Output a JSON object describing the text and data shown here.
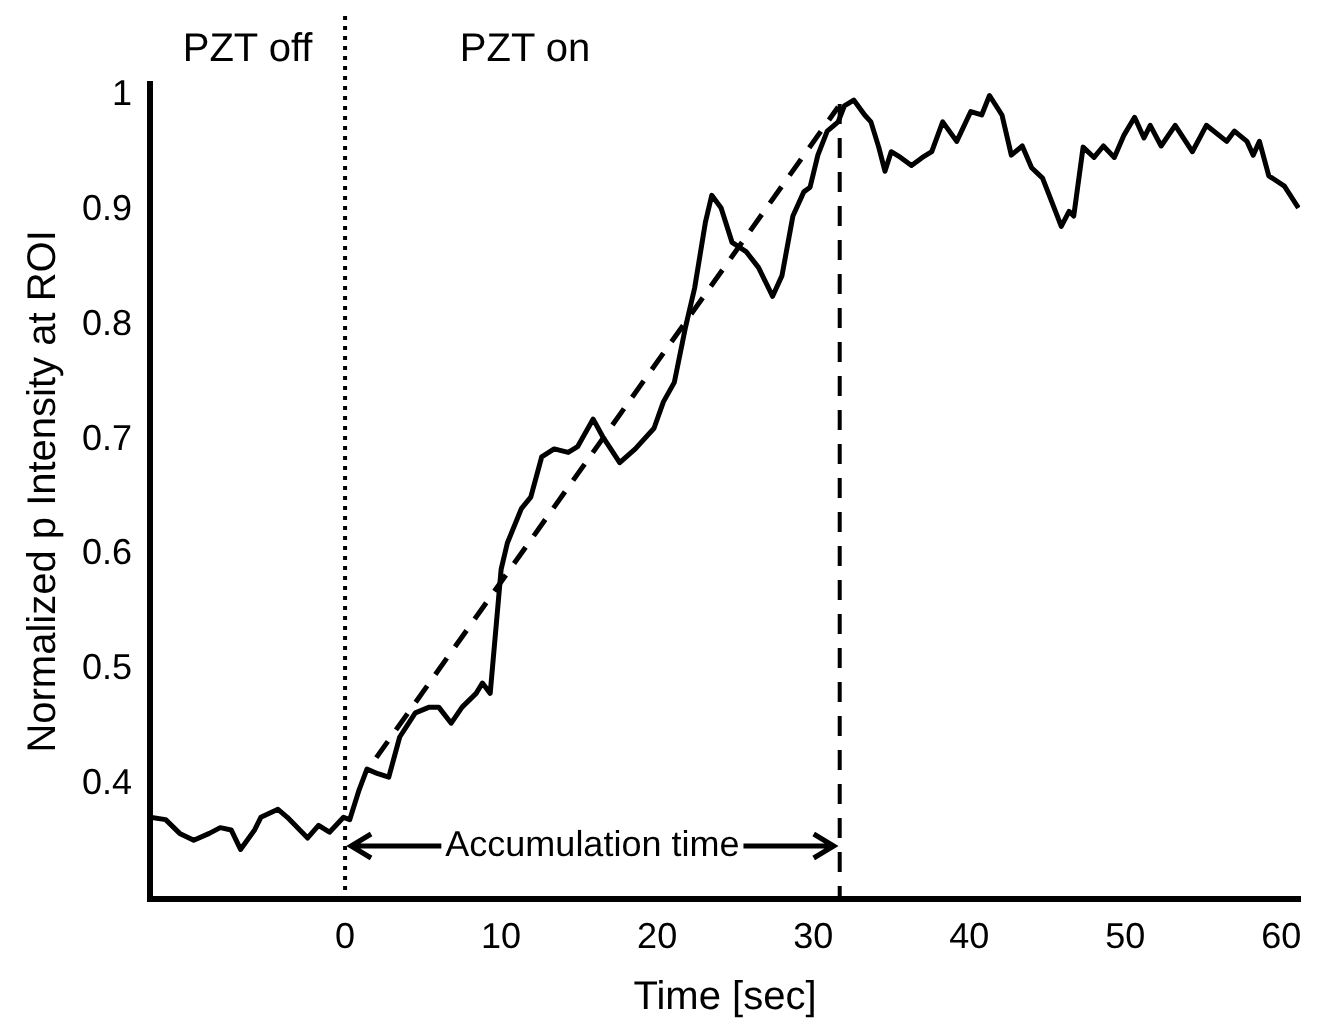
{
  "chart_data": {
    "type": "line",
    "xlabel": "Time [sec]",
    "ylabel": "Normalized p Intensity at ROI",
    "xlim": [
      -12.5,
      61.2
    ],
    "ylim": [
      0.3,
      1.01
    ],
    "xticks": [
      0,
      10,
      20,
      30,
      40,
      50,
      60
    ],
    "yticks": [
      0.4,
      0.5,
      0.6,
      0.7,
      0.8,
      0.9,
      1
    ],
    "series": [
      {
        "color": "#000000",
        "x": [
          -12.5,
          -11.5,
          -10.6,
          -9.7,
          -8.7,
          -8.0,
          -7.3,
          -6.7,
          -5.8,
          -5.4,
          -4.3,
          -3.7,
          -2.4,
          -1.7,
          -1.0,
          -0.1,
          0.3,
          0.9,
          1.4,
          2.1,
          2.8,
          3.5,
          4.5,
          5.4,
          6.0,
          6.8,
          7.5,
          8.4,
          8.8,
          9.3,
          10.0,
          10.4,
          11.3,
          11.9,
          12.6,
          13.4,
          14.3,
          14.9,
          15.9,
          16.5,
          17.6,
          18.6,
          19.8,
          20.4,
          21.1,
          21.8,
          22.4,
          23.1,
          23.5,
          24.1,
          24.8,
          25.7,
          26.5,
          27.4,
          28.0,
          28.7,
          29.4,
          29.8,
          30.3,
          30.9,
          31.6,
          32.0,
          32.6,
          33.3,
          33.7,
          34.2,
          34.6,
          35.0,
          35.6,
          36.3,
          37.0,
          37.6,
          38.3,
          39.2,
          40.1,
          40.8,
          41.3,
          42.1,
          42.7,
          43.4,
          44.0,
          44.7,
          45.3,
          45.9,
          46.4,
          46.7,
          47.3,
          48.0,
          48.6,
          49.3,
          49.9,
          50.6,
          51.2,
          51.6,
          52.3,
          53.2,
          54.3,
          55.2,
          56.5,
          57.0,
          57.8,
          58.2,
          58.6,
          59.2,
          60.2,
          61.1
        ],
        "values": [
          0.371,
          0.369,
          0.357,
          0.351,
          0.357,
          0.362,
          0.36,
          0.343,
          0.36,
          0.371,
          0.378,
          0.371,
          0.353,
          0.364,
          0.358,
          0.371,
          0.369,
          0.395,
          0.413,
          0.409,
          0.406,
          0.441,
          0.462,
          0.467,
          0.467,
          0.453,
          0.467,
          0.479,
          0.488,
          0.479,
          0.587,
          0.61,
          0.64,
          0.65,
          0.685,
          0.692,
          0.689,
          0.694,
          0.718,
          0.703,
          0.68,
          0.692,
          0.71,
          0.733,
          0.75,
          0.797,
          0.832,
          0.89,
          0.913,
          0.902,
          0.872,
          0.864,
          0.85,
          0.825,
          0.843,
          0.895,
          0.916,
          0.92,
          0.948,
          0.969,
          0.977,
          0.991,
          0.996,
          0.983,
          0.977,
          0.955,
          0.934,
          0.951,
          0.946,
          0.939,
          0.946,
          0.951,
          0.977,
          0.96,
          0.986,
          0.983,
          1.0,
          0.983,
          0.948,
          0.956,
          0.937,
          0.928,
          0.907,
          0.886,
          0.899,
          0.895,
          0.955,
          0.946,
          0.956,
          0.946,
          0.965,
          0.981,
          0.963,
          0.974,
          0.956,
          0.974,
          0.951,
          0.974,
          0.96,
          0.969,
          0.96,
          0.948,
          0.96,
          0.93,
          0.921,
          0.902
        ]
      },
      {
        "type": "line",
        "color": "#000000",
        "line_style": "dashed",
        "x": [
          2.0,
          31.6
        ],
        "values": [
          0.423,
          0.99
        ]
      }
    ],
    "ref_lines": [
      {
        "axis": "x",
        "value": 0,
        "line_style": "dotted"
      },
      {
        "axis": "x",
        "value": 31.7,
        "line_style": "dashed"
      }
    ],
    "annotations": [
      "PZT off",
      "PZT on",
      {
        "text": "Accumulation time",
        "x": 31.7,
        "y": 0.346
      }
    ]
  }
}
